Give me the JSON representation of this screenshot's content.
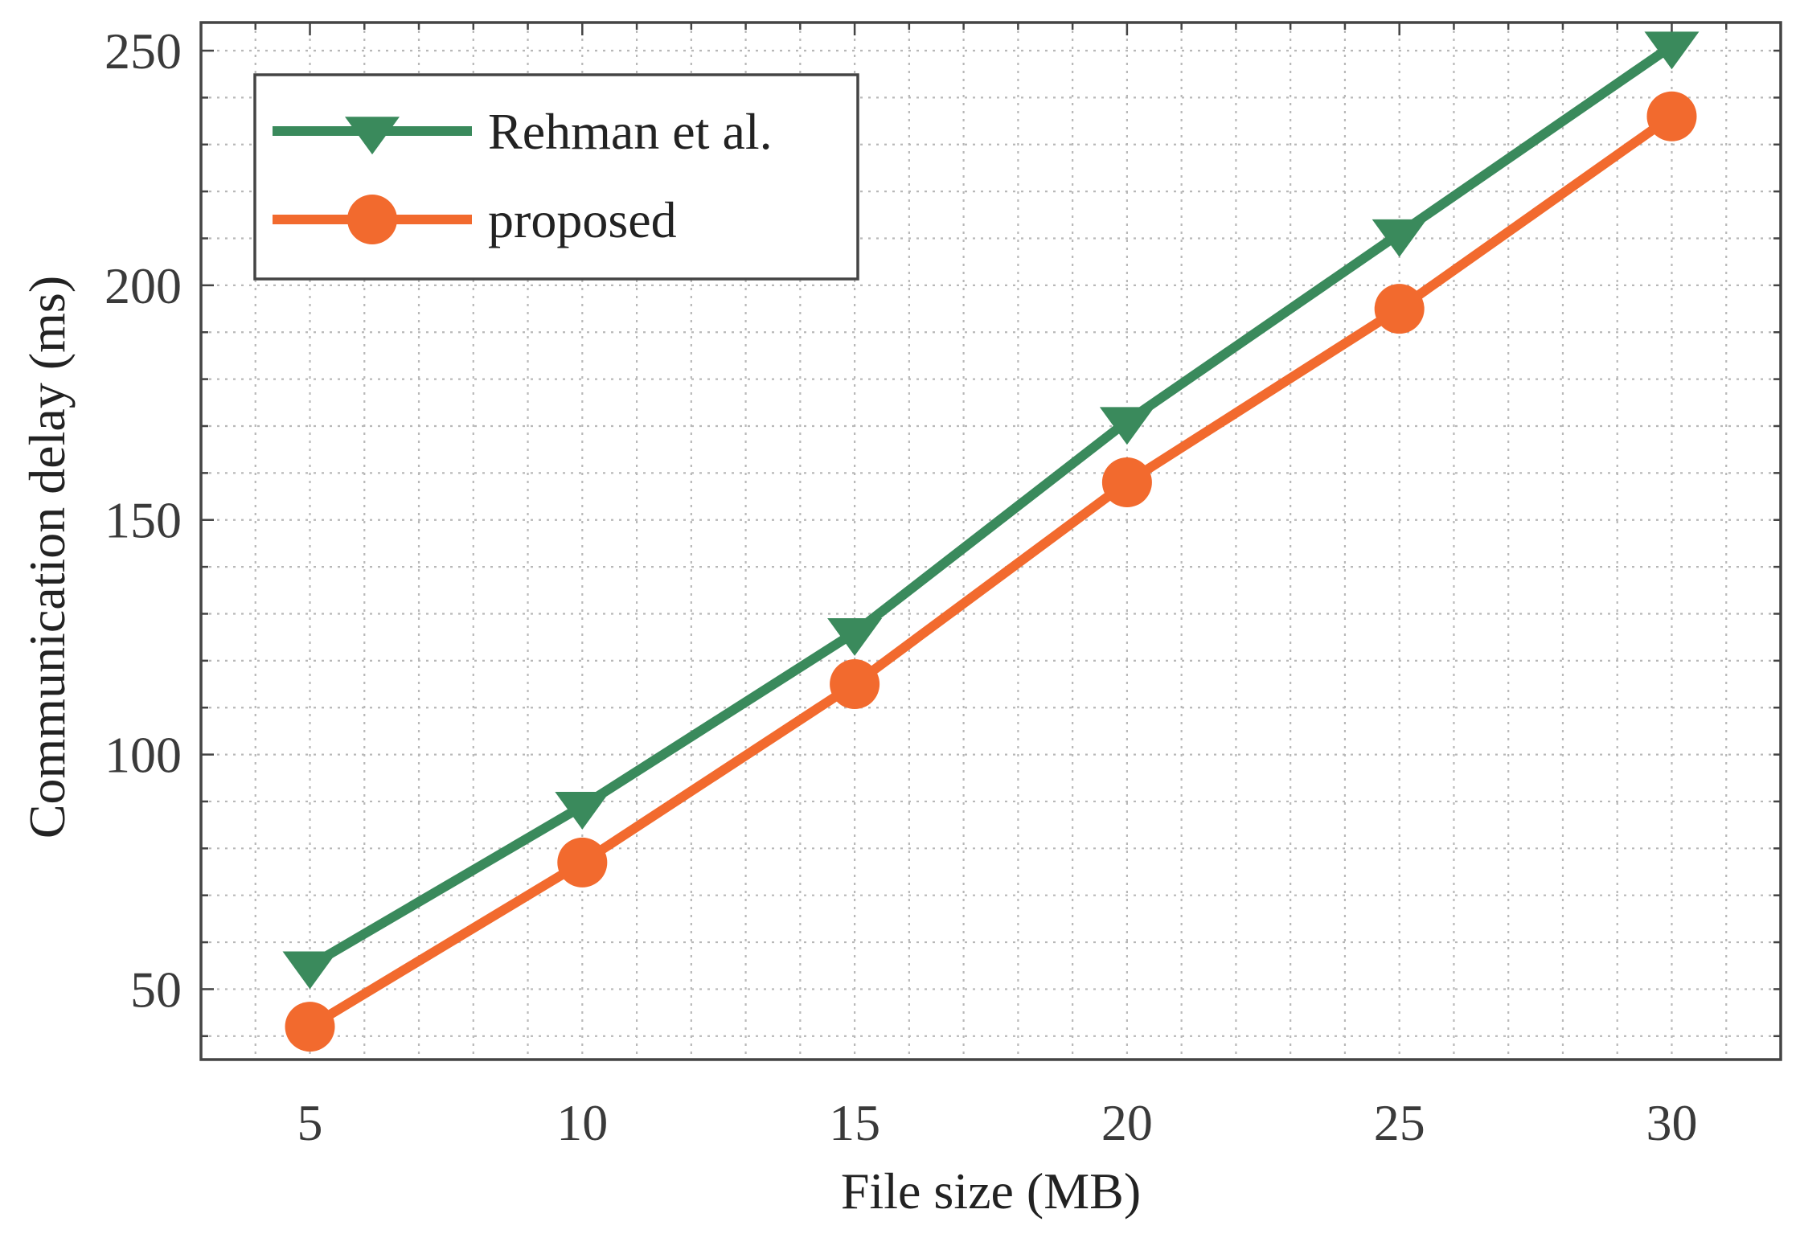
{
  "chart_data": {
    "type": "line",
    "title": "",
    "xlabel": "File size (MB)",
    "ylabel": "Communication delay (ms)",
    "x": [
      5,
      10,
      15,
      20,
      25,
      30
    ],
    "xticks": [
      "5",
      "10",
      "15",
      "20",
      "25",
      "30"
    ],
    "yticks": [
      "50",
      "100",
      "150",
      "200",
      "250"
    ],
    "xlim": [
      3,
      32
    ],
    "ylim": [
      35,
      256
    ],
    "grid": true,
    "legend_position": "top-left",
    "series": [
      {
        "name": "Rehman et al.",
        "values": [
          55,
          89,
          126,
          171,
          211,
          251
        ],
        "color": "#3a8a5c",
        "marker": "triangle-down"
      },
      {
        "name": "proposed",
        "values": [
          42,
          77,
          115,
          158,
          195,
          236
        ],
        "color": "#f26a2e",
        "marker": "circle"
      }
    ]
  }
}
